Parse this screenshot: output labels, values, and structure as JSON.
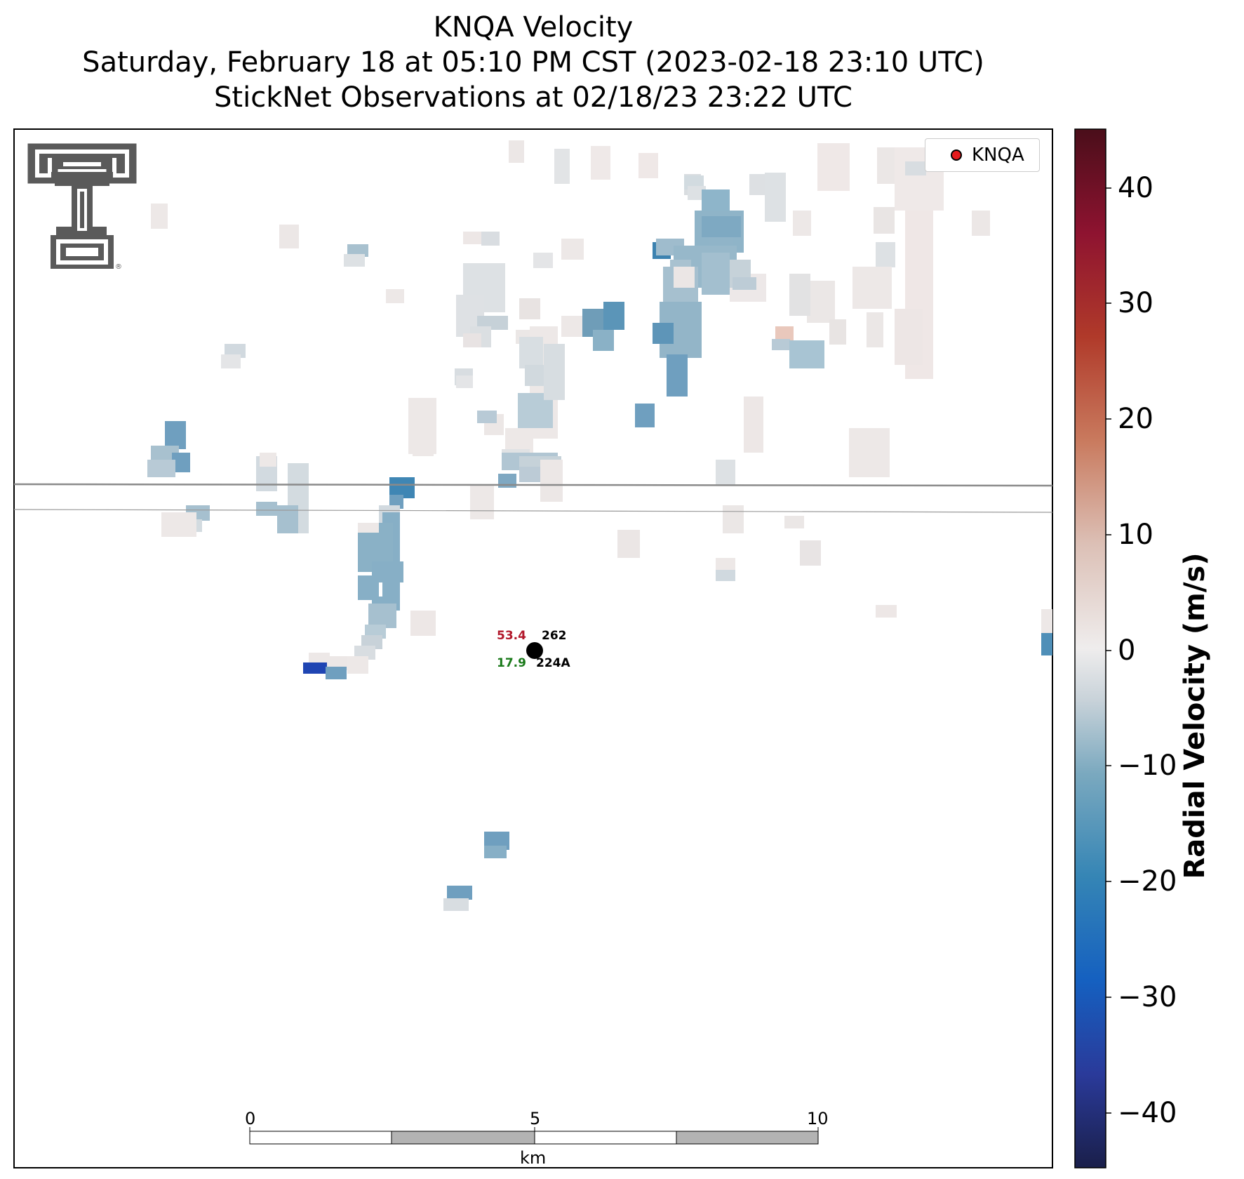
{
  "title": {
    "line1": "KNQA Velocity",
    "line2": "Saturday, February 18 at 05:10 PM CST (2023-02-18 23:10 UTC)",
    "line3": "StickNet Observations at 02/18/23 23:22 UTC"
  },
  "legend": {
    "label": "KNQA",
    "marker_color": "#e41a1c"
  },
  "station": {
    "name_top": "262",
    "name_bottom": "224A",
    "value_red": "53.4",
    "value_green": "17.9",
    "red_color": "#b2182b",
    "green_color": "#1a7a1a"
  },
  "scalebar": {
    "ticks": [
      "0",
      "5",
      "10"
    ],
    "unit": "km"
  },
  "colorbar": {
    "label": "Radial Velocity (m/s)",
    "min": -45,
    "max": 45,
    "ticks": [
      "40",
      "30",
      "20",
      "10",
      "0",
      "−10",
      "−20",
      "−30",
      "−40"
    ],
    "colors": [
      "#1a1f4a",
      "#2a3a9a",
      "#1560c0",
      "#3585b5",
      "#7ba9bf",
      "#c8d2d9",
      "#efeded",
      "#dcc0b6",
      "#c97a5e",
      "#b03a2a",
      "#8e1330",
      "#4a0e1a"
    ]
  },
  "logo": {
    "name": "Texas Tech Double T"
  }
}
